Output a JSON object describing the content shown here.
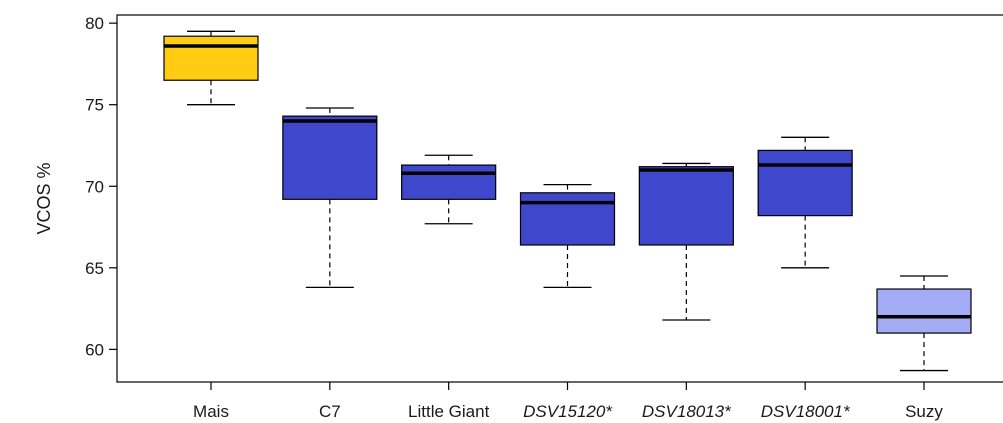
{
  "chart_data": {
    "type": "boxplot",
    "title": "",
    "xlabel": "",
    "ylabel": "VCOS %",
    "ylim": [
      58,
      80.5
    ],
    "yticks": [
      60,
      65,
      70,
      75,
      80
    ],
    "ytick_labels": [
      "60",
      "65",
      "70",
      "75",
      "80"
    ],
    "grid": false,
    "categories": [
      {
        "label": "Mais",
        "italic": false,
        "color": "#FFCC11",
        "min": 75.0,
        "q1": 76.5,
        "median": 78.6,
        "q3": 79.2,
        "max": 79.5
      },
      {
        "label": "C7",
        "italic": false,
        "color": "#3F48CC",
        "min": 63.8,
        "q1": 69.2,
        "median": 74.0,
        "q3": 74.3,
        "max": 74.8
      },
      {
        "label": "Little Giant",
        "italic": false,
        "color": "#3F48CC",
        "min": 67.7,
        "q1": 69.2,
        "median": 70.8,
        "q3": 71.3,
        "max": 71.9
      },
      {
        "label": "DSV15120*",
        "italic": true,
        "color": "#3F48CC",
        "min": 63.8,
        "q1": 66.4,
        "median": 69.0,
        "q3": 69.6,
        "max": 70.1
      },
      {
        "label": "DSV18013*",
        "italic": true,
        "color": "#3F48CC",
        "min": 61.8,
        "q1": 66.4,
        "median": 71.0,
        "q3": 71.2,
        "max": 71.4
      },
      {
        "label": "DSV18001*",
        "italic": true,
        "color": "#3F48CC",
        "min": 65.0,
        "q1": 68.2,
        "median": 71.3,
        "q3": 72.2,
        "max": 73.0
      },
      {
        "label": "Suzy",
        "italic": false,
        "color": "#A4ABF5",
        "min": 58.7,
        "q1": 61.0,
        "median": 62.0,
        "q3": 63.7,
        "max": 64.5
      }
    ]
  }
}
